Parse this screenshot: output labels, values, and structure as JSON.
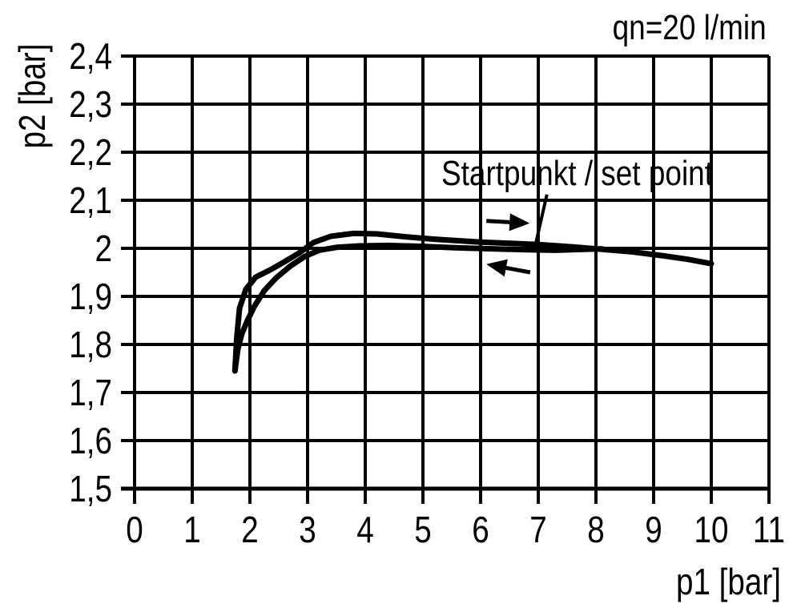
{
  "colors": {
    "ink": "#000000",
    "background": "#ffffff"
  },
  "chart_data": {
    "type": "line",
    "title": "",
    "flow_label": "qn=20 l/min",
    "annotation_text": "Startpunkt / set point",
    "xlabel": "p1 [bar]",
    "ylabel": "p2 [bar]",
    "xlim": [
      0,
      11
    ],
    "ylim": [
      1.5,
      2.4
    ],
    "grid": true,
    "x_ticks": [
      {
        "value": 0,
        "label": "0"
      },
      {
        "value": 1,
        "label": "1"
      },
      {
        "value": 2,
        "label": "2"
      },
      {
        "value": 3,
        "label": "3"
      },
      {
        "value": 4,
        "label": "4"
      },
      {
        "value": 5,
        "label": "5"
      },
      {
        "value": 6,
        "label": "6"
      },
      {
        "value": 7,
        "label": "7"
      },
      {
        "value": 8,
        "label": "8"
      },
      {
        "value": 9,
        "label": "9"
      },
      {
        "value": 10,
        "label": "10"
      },
      {
        "value": 11,
        "label": "11"
      }
    ],
    "y_ticks": [
      {
        "value": 1.5,
        "label": "1,5"
      },
      {
        "value": 1.6,
        "label": "1,6"
      },
      {
        "value": 1.7,
        "label": "1,7"
      },
      {
        "value": 1.8,
        "label": "1,8"
      },
      {
        "value": 1.9,
        "label": "1,9"
      },
      {
        "value": 2.0,
        "label": "2"
      },
      {
        "value": 2.1,
        "label": "2,1"
      },
      {
        "value": 2.2,
        "label": "2,2"
      },
      {
        "value": 2.3,
        "label": "2,3"
      },
      {
        "value": 2.4,
        "label": "2,4"
      }
    ],
    "series": [
      {
        "name": "upper branch (direction of increasing p1)",
        "points": [
          [
            1.74,
            1.745
          ],
          [
            1.77,
            1.81
          ],
          [
            1.82,
            1.875
          ],
          [
            1.93,
            1.915
          ],
          [
            2.1,
            1.94
          ],
          [
            2.35,
            1.955
          ],
          [
            2.6,
            1.972
          ],
          [
            2.85,
            1.99
          ],
          [
            3.1,
            2.012
          ],
          [
            3.4,
            2.025
          ],
          [
            3.8,
            2.031
          ],
          [
            4.2,
            2.03
          ],
          [
            4.7,
            2.024
          ],
          [
            5.2,
            2.019
          ],
          [
            6.0,
            2.013
          ],
          [
            6.6,
            2.01
          ],
          [
            7.0,
            2.008
          ],
          [
            7.6,
            2.003
          ],
          [
            8.0,
            1.999
          ],
          [
            8.6,
            1.993
          ],
          [
            9.2,
            1.984
          ],
          [
            9.6,
            1.977
          ],
          [
            10.0,
            1.968
          ]
        ]
      },
      {
        "name": "lower branch (direction of decreasing p1)",
        "points": [
          [
            1.74,
            1.745
          ],
          [
            1.79,
            1.79
          ],
          [
            1.86,
            1.822
          ],
          [
            1.95,
            1.848
          ],
          [
            2.08,
            1.88
          ],
          [
            2.25,
            1.912
          ],
          [
            2.45,
            1.938
          ],
          [
            2.7,
            1.963
          ],
          [
            2.95,
            1.983
          ],
          [
            3.2,
            1.996
          ],
          [
            3.5,
            2.002
          ],
          [
            3.9,
            2.005
          ],
          [
            4.4,
            2.006
          ],
          [
            5.0,
            2.004
          ],
          [
            5.6,
            2.001
          ],
          [
            6.2,
            1.999
          ],
          [
            6.8,
            1.997
          ],
          [
            7.3,
            1.996
          ],
          [
            7.8,
            1.998
          ],
          [
            8.1,
            1.999
          ]
        ]
      }
    ],
    "annotations": {
      "arrows": [
        {
          "name": "direction-arrow-right",
          "from": [
            6.1,
            2.057
          ],
          "to": [
            6.85,
            2.052
          ]
        },
        {
          "name": "direction-arrow-left",
          "from": [
            6.86,
            1.95
          ],
          "to": [
            6.1,
            1.967
          ]
        }
      ],
      "leader_line": {
        "from": [
          7.15,
          2.112
        ],
        "to": [
          6.96,
          2.012
        ]
      }
    }
  }
}
